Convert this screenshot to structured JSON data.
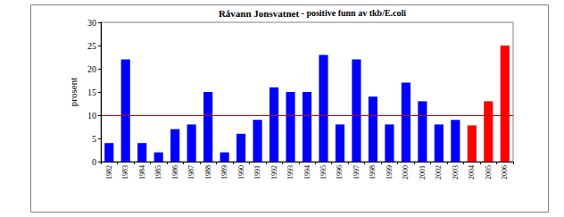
{
  "chart_data": {
    "type": "bar",
    "title": "Råvann Jonsvatnet - positive funn av tkb/E.coli",
    "y_label": "prosent",
    "categories": [
      "1982",
      "1983",
      "1984",
      "1985",
      "1986",
      "1987",
      "1988",
      "1989",
      "1990",
      "1991",
      "1992",
      "1993",
      "1994",
      "1995",
      "1996",
      "1997",
      "1998",
      "1999",
      "2000",
      "2001",
      "2002",
      "2003",
      "2004",
      "2005",
      "2006"
    ],
    "values": [
      4,
      22,
      4,
      2,
      7,
      8,
      15,
      2,
      6,
      9,
      16,
      15,
      15,
      23,
      8,
      22,
      14,
      8,
      17,
      13,
      8,
      9,
      7.8,
      13,
      25
    ],
    "colors": [
      "#0000ff",
      "#0000ff",
      "#0000ff",
      "#0000ff",
      "#0000ff",
      "#0000ff",
      "#0000ff",
      "#0000ff",
      "#0000ff",
      "#0000ff",
      "#0000ff",
      "#0000ff",
      "#0000ff",
      "#0000ff",
      "#0000ff",
      "#0000ff",
      "#0000ff",
      "#0000ff",
      "#0000ff",
      "#0000ff",
      "#0000ff",
      "#0000ff",
      "#ff0000",
      "#ff0000",
      "#ff0000"
    ],
    "ylim": [
      0,
      30
    ],
    "yticks": [
      0,
      5,
      10,
      15,
      20,
      25,
      30
    ],
    "reference_line": {
      "value": 10,
      "color": "#cc0000"
    },
    "grid": false
  }
}
